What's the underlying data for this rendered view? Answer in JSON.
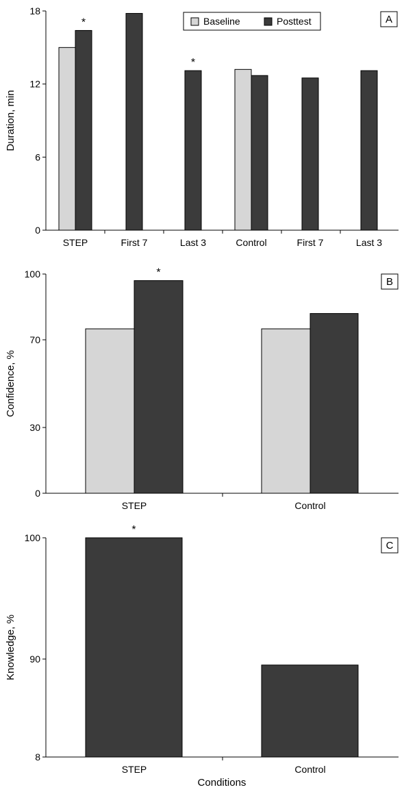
{
  "colors": {
    "baseline": "#d6d6d6",
    "posttest": "#3b3b3b",
    "axis": "#000000"
  },
  "legend": {
    "baseline_label": "Baseline",
    "posttest_label": "Posttest"
  },
  "x_title": "Conditions",
  "chart_data": [
    {
      "panel": "A",
      "type": "bar",
      "ylabel": "Duration, min",
      "ylim": [
        0,
        18
      ],
      "yticks": [
        "0",
        "6",
        "12",
        "18"
      ],
      "ytick_values": [
        0,
        6,
        12,
        18
      ],
      "categories": [
        "STEP",
        "First 7",
        "Last 3",
        "Control",
        "First 7",
        "Last 3"
      ],
      "series": [
        {
          "name": "Baseline",
          "values": [
            15.0,
            null,
            null,
            13.2,
            null,
            null
          ]
        },
        {
          "name": "Posttest",
          "values": [
            16.4,
            17.8,
            13.1,
            12.7,
            12.5,
            13.1
          ]
        }
      ],
      "significance": [
        "*",
        "",
        "*",
        "",
        "",
        ""
      ]
    },
    {
      "panel": "B",
      "type": "bar",
      "ylabel": "Confidence, %",
      "ylim": [
        0,
        100
      ],
      "yticks": [
        "0",
        "30",
        "70",
        "100"
      ],
      "ytick_values": [
        0,
        30,
        70,
        100
      ],
      "categories": [
        "STEP",
        "Control"
      ],
      "series": [
        {
          "name": "Baseline",
          "values": [
            75,
            75
          ]
        },
        {
          "name": "Posttest",
          "values": [
            97,
            82
          ]
        }
      ],
      "significance": [
        "*",
        ""
      ]
    },
    {
      "panel": "C",
      "type": "bar",
      "ylabel": "Knowledge, %",
      "ylim": [
        8,
        100
      ],
      "yticks": [
        "8",
        "90",
        "100"
      ],
      "ytick_values": [
        8,
        90,
        100
      ],
      "categories": [
        "STEP",
        "Control"
      ],
      "series": [
        {
          "name": "Posttest",
          "values": [
            100,
            85
          ]
        }
      ],
      "significance": [
        "*",
        ""
      ]
    }
  ]
}
